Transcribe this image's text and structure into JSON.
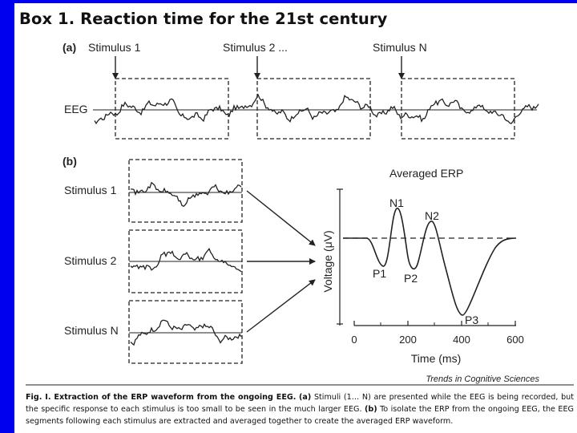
{
  "box_title": "Box 1. Reaction time for the 21st century",
  "panel_a": {
    "panel_label": "(a)",
    "stimuli": [
      "Stimulus 1",
      "Stimulus 2 ...",
      "Stimulus N"
    ],
    "signal_label": "EEG"
  },
  "panel_b": {
    "panel_label": "(b)",
    "segment_labels": [
      "Stimulus 1",
      "Stimulus 2",
      "Stimulus N"
    ],
    "erp_title": "Averaged ERP",
    "y_axis_label": "Voltage (μV)",
    "x_axis_label": "Time (ms)",
    "x_ticks": [
      "0",
      "200",
      "400",
      "600"
    ],
    "peaks": [
      "N1",
      "N2",
      "P1",
      "P2",
      "P3"
    ]
  },
  "journal_credit": "Trends in Cognitive Sciences",
  "caption": {
    "lead": "Fig. I. Extraction of the ERP waveform from the ongoing EEG.",
    "a_label": "(a)",
    "a_text": "Stimuli (1… N) are presented while the EEG is being recorded, but the specific response to each stimulus is too small to be seen in the much larger EEG.",
    "b_label": "(b)",
    "b_text": "To isolate the ERP from the ongoing EEG, the EEG segments following each stimulus are extracted and averaged together to create the averaged ERP waveform."
  }
}
